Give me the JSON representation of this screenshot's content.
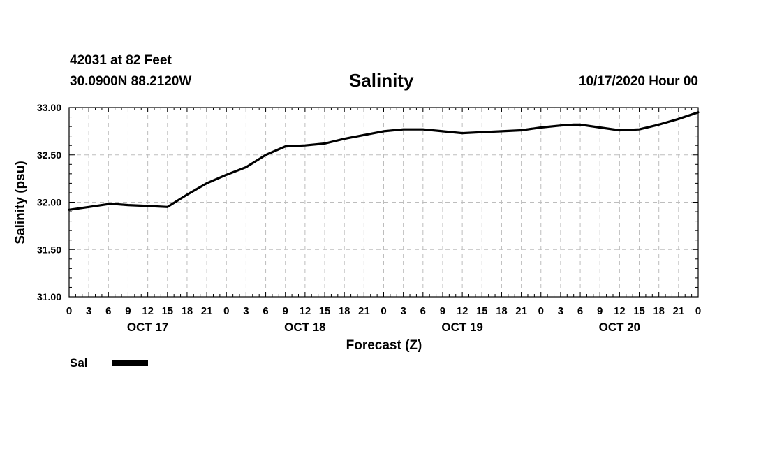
{
  "header": {
    "station": "42031 at 82 Feet",
    "coordinates": "30.0900N 88.2120W",
    "title": "Salinity",
    "run_time": "10/17/2020 Hour 00"
  },
  "chart_data": {
    "type": "line",
    "title": "Salinity",
    "xlabel": "Forecast (Z)",
    "ylabel": "Salinity (psu)",
    "ylim": [
      31.0,
      33.0
    ],
    "yticks": [
      "31.00",
      "31.50",
      "32.00",
      "32.50",
      "33.00"
    ],
    "xlim": [
      0,
      96
    ],
    "x_hour_labels": [
      "0",
      "3",
      "6",
      "9",
      "12",
      "15",
      "18",
      "21",
      "0",
      "3",
      "6",
      "9",
      "12",
      "15",
      "18",
      "21",
      "0",
      "3",
      "6",
      "9",
      "12",
      "15",
      "18",
      "21",
      "0",
      "3",
      "6",
      "9",
      "12",
      "15",
      "18",
      "21",
      "0"
    ],
    "day_labels": [
      {
        "label": "OCT 17",
        "hour": 12
      },
      {
        "label": "OCT 18",
        "hour": 36
      },
      {
        "label": "OCT 19",
        "hour": 60
      },
      {
        "label": "OCT 20",
        "hour": 84
      }
    ],
    "grid": true,
    "legend_position": "bottom-left",
    "line_color": "#000000",
    "series": [
      {
        "name": "Sal",
        "x": [
          0,
          3,
          6,
          7,
          9,
          12,
          15,
          18,
          21,
          24,
          27,
          30,
          33,
          36,
          39,
          42,
          45,
          48,
          51,
          54,
          57,
          60,
          63,
          66,
          69,
          72,
          75,
          77,
          78,
          81,
          84,
          87,
          90,
          93,
          96
        ],
        "y": [
          31.92,
          31.95,
          31.98,
          31.98,
          31.97,
          31.96,
          31.95,
          32.08,
          32.2,
          32.29,
          32.37,
          32.5,
          32.59,
          32.6,
          32.62,
          32.67,
          32.71,
          32.75,
          32.77,
          32.77,
          32.75,
          32.73,
          32.74,
          32.75,
          32.76,
          32.79,
          32.81,
          32.82,
          32.82,
          32.79,
          32.76,
          32.77,
          32.82,
          32.88,
          32.95
        ]
      }
    ]
  }
}
